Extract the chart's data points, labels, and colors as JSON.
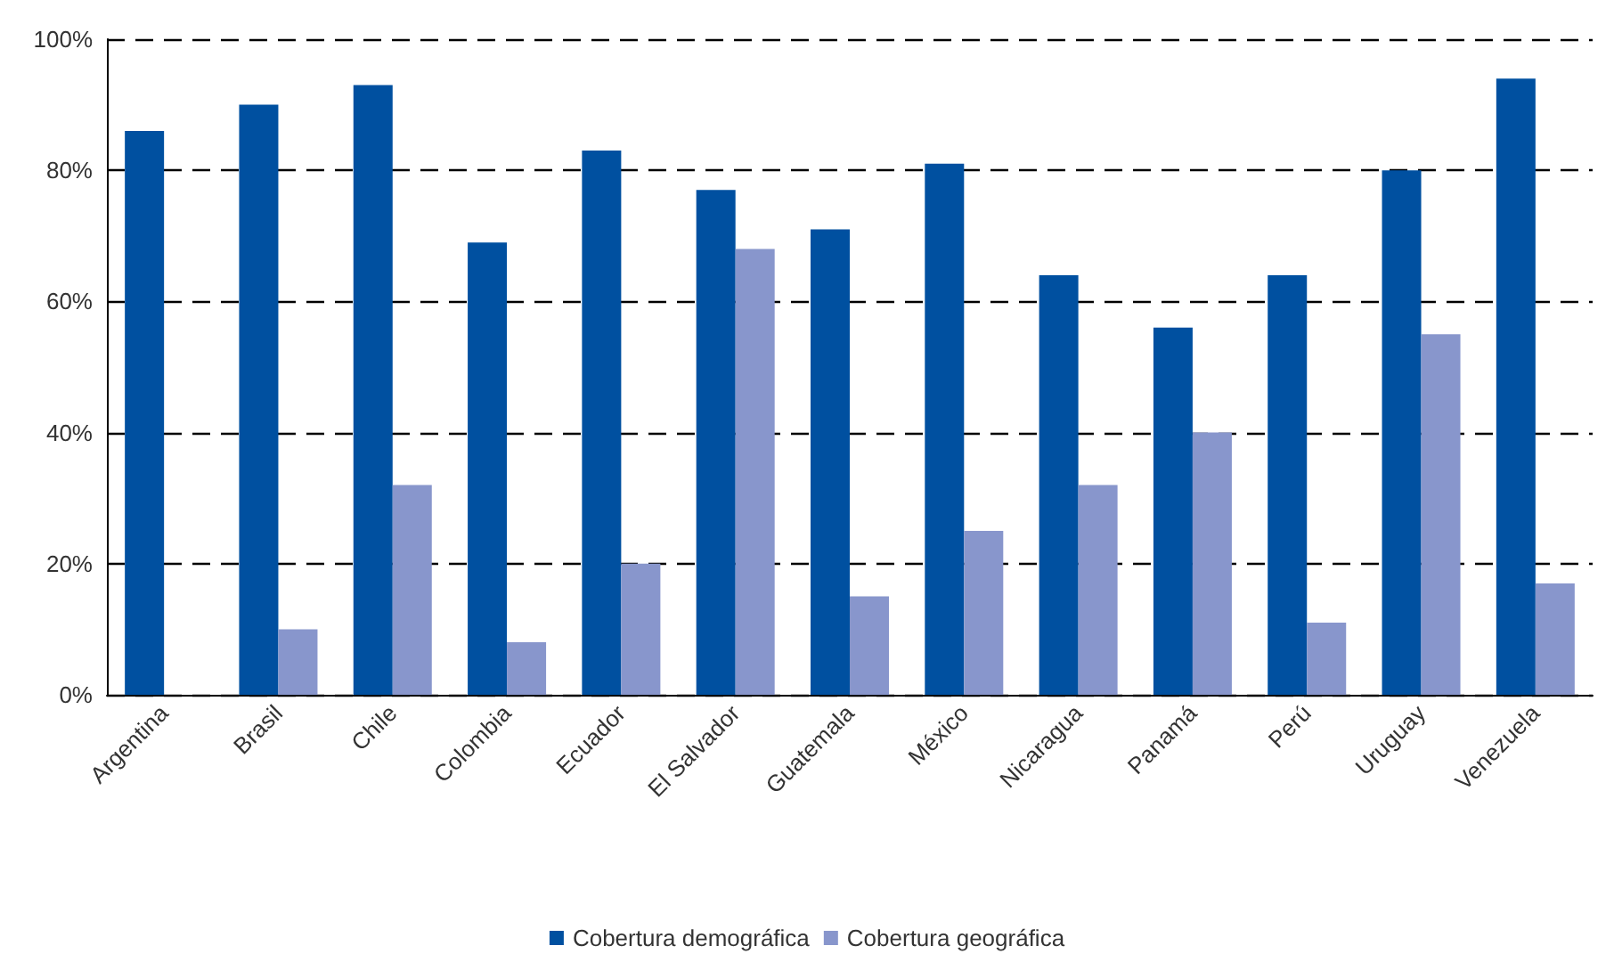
{
  "chart_data": {
    "type": "bar",
    "categories": [
      "Argentina",
      "Brasil",
      "Chile",
      "Colombia",
      "Ecuador",
      "El Salvador",
      "Guatemala",
      "México",
      "Nicaragua",
      "Panamá",
      "Perú",
      "Uruguay",
      "Venezuela"
    ],
    "series": [
      {
        "name": "Cobertura demográfica",
        "color": "#0050a0",
        "values": [
          86,
          90,
          93,
          69,
          83,
          77,
          71,
          81,
          64,
          56,
          64,
          80,
          94
        ]
      },
      {
        "name": "Cobertura geográfica",
        "color": "#8896cc",
        "values": [
          null,
          10,
          32,
          8,
          20,
          68,
          15,
          25,
          32,
          40,
          11,
          55,
          17
        ]
      }
    ],
    "ylim": [
      0,
      100
    ],
    "yticks": [
      {
        "value": 0,
        "label": "0%"
      },
      {
        "value": 20,
        "label": "20%"
      },
      {
        "value": 40,
        "label": "40%"
      },
      {
        "value": 60,
        "label": "60%"
      },
      {
        "value": 80,
        "label": "80%"
      },
      {
        "value": 100,
        "label": "100%"
      }
    ],
    "grid": "y",
    "legend": "bottom"
  }
}
